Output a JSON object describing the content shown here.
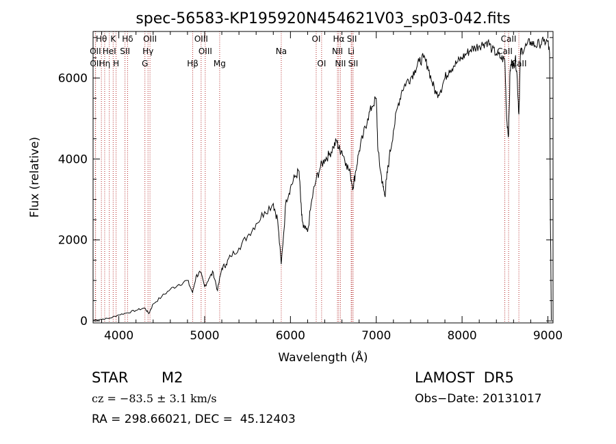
{
  "chart_data": {
    "type": "line",
    "title": "spec-56583-KP195920N454621V03_sp03-042.fits",
    "xlabel": "Wavelength (Å)",
    "ylabel": "Flux (relative)",
    "xlim": [
      3700,
      9060
    ],
    "ylim": [
      -50,
      7150
    ],
    "xticks": [
      4000,
      5000,
      6000,
      7000,
      8000,
      9000
    ],
    "yticks": [
      0,
      2000,
      4000,
      6000
    ],
    "grid": false,
    "line_color": "#000000",
    "marker_color": "#b22222",
    "spectrum": {
      "x": [
        3700,
        3800,
        3900,
        4000,
        4100,
        4200,
        4300,
        4350,
        4400,
        4500,
        4600,
        4700,
        4800,
        4860,
        4900,
        4950,
        5000,
        5050,
        5100,
        5150,
        5200,
        5250,
        5300,
        5400,
        5500,
        5600,
        5700,
        5800,
        5850,
        5893,
        5950,
        6000,
        6050,
        6100,
        6130,
        6150,
        6200,
        6250,
        6300,
        6350,
        6400,
        6450,
        6500,
        6540,
        6563,
        6600,
        6650,
        6700,
        6730,
        6760,
        6800,
        6850,
        6900,
        6950,
        7000,
        7020,
        7050,
        7080,
        7100,
        7120,
        7150,
        7200,
        7250,
        7300,
        7350,
        7400,
        7450,
        7500,
        7550,
        7600,
        7650,
        7700,
        7750,
        7800,
        7850,
        7900,
        7950,
        8000,
        8050,
        8100,
        8150,
        8200,
        8250,
        8300,
        8350,
        8400,
        8450,
        8498,
        8520,
        8542,
        8560,
        8580,
        8600,
        8620,
        8640,
        8662,
        8680,
        8700,
        8750,
        8800,
        8850,
        8900,
        8950,
        9000,
        9020,
        9030,
        9040
      ],
      "y": [
        20,
        40,
        70,
        150,
        200,
        260,
        320,
        180,
        420,
        600,
        780,
        900,
        1000,
        700,
        1100,
        1200,
        850,
        1050,
        1200,
        750,
        1300,
        1400,
        1600,
        1800,
        2100,
        2400,
        2700,
        2900,
        2500,
        1400,
        3000,
        3300,
        3550,
        3700,
        2600,
        2300,
        2200,
        3000,
        3500,
        3800,
        4000,
        4100,
        4300,
        4450,
        4250,
        4200,
        3900,
        3600,
        3300,
        3700,
        4200,
        4600,
        5000,
        5300,
        5500,
        4200,
        3700,
        3300,
        3100,
        3500,
        4000,
        4700,
        5300,
        5700,
        5900,
        6000,
        6200,
        6400,
        6500,
        6300,
        5900,
        5600,
        5700,
        6000,
        6200,
        6300,
        6400,
        6500,
        6600,
        6700,
        6750,
        6800,
        6850,
        6900,
        6700,
        6600,
        6500,
        6450,
        5000,
        4600,
        6200,
        6400,
        6300,
        6500,
        6100,
        5100,
        6600,
        6700,
        6800,
        6900,
        6800,
        6850,
        6900,
        6900,
        6600,
        2400,
        20
      ]
    },
    "lines": [
      {
        "label": "Hθ",
        "wave": 3797,
        "row": 0
      },
      {
        "label": "OII",
        "wave": 3727,
        "row": 1
      },
      {
        "label": "OII",
        "wave": 3729,
        "row": 2
      },
      {
        "label": "K",
        "wave": 3934,
        "row": 0
      },
      {
        "label": "HeI",
        "wave": 3889,
        "row": 1
      },
      {
        "label": "Hη",
        "wave": 3835,
        "row": 2
      },
      {
        "label": "H",
        "wave": 3968,
        "row": 2
      },
      {
        "label": "Hδ",
        "wave": 4102,
        "row": 0
      },
      {
        "label": "SII",
        "wave": 4072,
        "row": 1
      },
      {
        "label": "OIII",
        "wave": 4363,
        "row": 0
      },
      {
        "label": "Hγ",
        "wave": 4340,
        "row": 1
      },
      {
        "label": "G",
        "wave": 4304,
        "row": 2
      },
      {
        "label": "Hβ",
        "wave": 4861,
        "row": 2
      },
      {
        "label": "OIII",
        "wave": 4959,
        "row": 0
      },
      {
        "label": "OIII",
        "wave": 5007,
        "row": 1
      },
      {
        "label": "Mg",
        "wave": 5175,
        "row": 2
      },
      {
        "label": "Na",
        "wave": 5893,
        "row": 1
      },
      {
        "label": "OI",
        "wave": 6300,
        "row": 0
      },
      {
        "label": "OI",
        "wave": 6363,
        "row": 2
      },
      {
        "label": "Hα",
        "wave": 6563,
        "row": 0
      },
      {
        "label": "NII",
        "wave": 6548,
        "row": 1
      },
      {
        "label": "NII",
        "wave": 6583,
        "row": 2
      },
      {
        "label": "SII",
        "wave": 6716,
        "row": 0
      },
      {
        "label": "Li",
        "wave": 6708,
        "row": 1
      },
      {
        "label": "SII",
        "wave": 6731,
        "row": 2
      },
      {
        "label": "CaII",
        "wave": 8542,
        "row": 0
      },
      {
        "label": "CaII",
        "wave": 8498,
        "row": 1
      },
      {
        "label": "CaII",
        "wave": 8662,
        "row": 2
      }
    ]
  },
  "info": {
    "object_class": "STAR",
    "subclass": "M2",
    "survey": "LAMOST  DR5",
    "redshift_text": "cz = −83.5 ± 3.1 km/s",
    "obs_date": "Obs−Date: 20131017",
    "coords": "RA = 298.66021, DEC =  45.12403"
  }
}
